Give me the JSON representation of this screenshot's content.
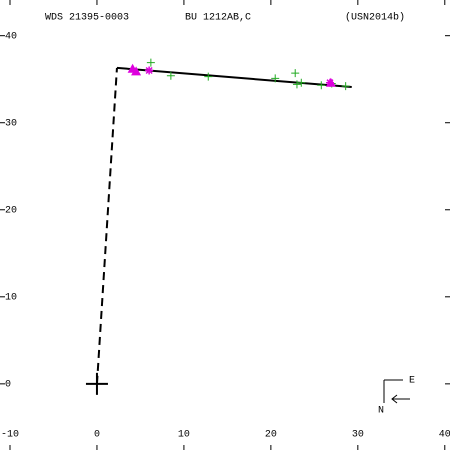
{
  "chart_data": {
    "type": "scatter",
    "title": "WDS 21395-0003",
    "subtitle": "BU 1212AB,C",
    "annotation": "(USN2014b)",
    "xlim": [
      -11.15,
      40.6
    ],
    "ylim": [
      -7.6,
      44.1
    ],
    "xticks": [
      -10,
      0,
      10,
      20,
      30,
      40
    ],
    "yticks": [
      0,
      10,
      20,
      30,
      40
    ],
    "series": [
      {
        "color": "#22aa22",
        "marker": "plus",
        "x": [
          6.2,
          8.5,
          12.8,
          20.5,
          22.8,
          23.0,
          23.5,
          25.8,
          27.0,
          28.6
        ],
        "values": [
          36.9,
          35.4,
          35.3,
          35.1,
          35.7,
          34.4,
          34.6,
          34.3,
          34.5,
          34.2
        ]
      },
      {
        "color": "#dd00dd",
        "marker": "triangle",
        "x": [
          4.1,
          4.5,
          26.9
        ],
        "values": [
          36.2,
          35.9,
          34.6
        ]
      },
      {
        "color": "#dd00dd",
        "marker": "star",
        "x": [
          6.0,
          26.8
        ],
        "values": [
          36.0,
          34.6
        ]
      }
    ],
    "lines": [
      {
        "color": "#000000",
        "dash": true,
        "x": [
          0,
          2.3
        ],
        "values": [
          0,
          36.3
        ]
      },
      {
        "color": "#000000",
        "dash": false,
        "x": [
          2.3,
          29.3
        ],
        "values": [
          36.3,
          34.1
        ]
      }
    ],
    "primary": {
      "x": 0,
      "y": 0
    },
    "compass": {
      "east": "E",
      "north": "N"
    }
  }
}
